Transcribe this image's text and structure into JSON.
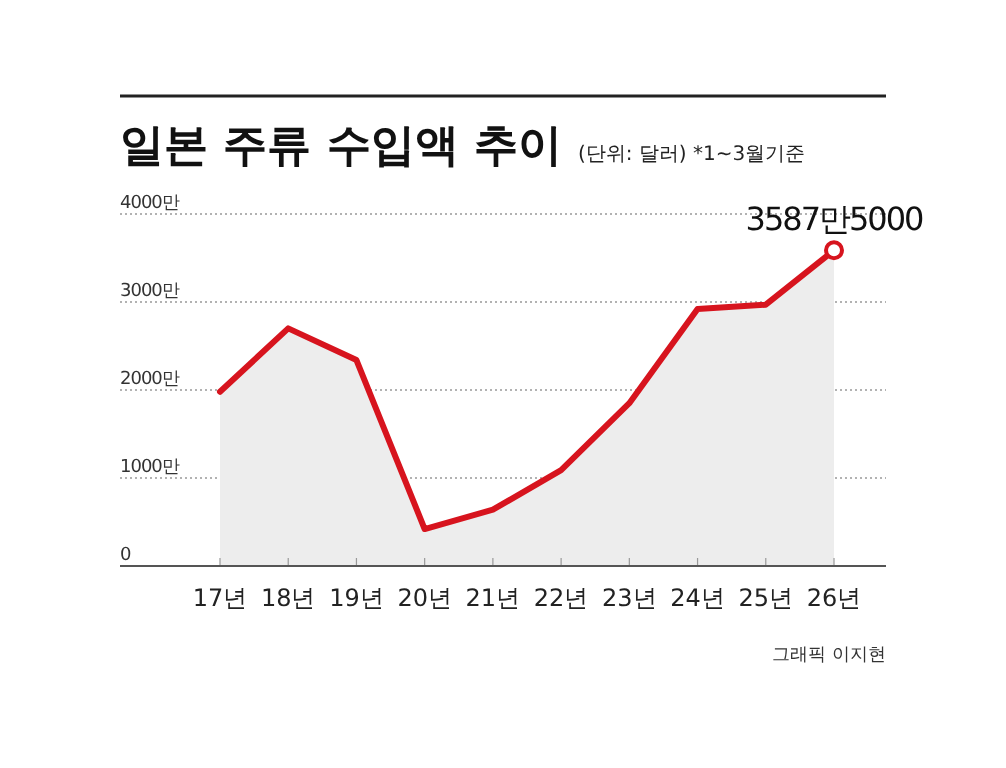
{
  "chart_data": {
    "type": "area",
    "title": "일본 주류 수입액 추이",
    "subtitle": "(단위: 달러)  *1~3월기준",
    "categories": [
      "17년",
      "18년",
      "19년",
      "20년",
      "21년",
      "22년",
      "23년",
      "24년",
      "25년",
      "26년"
    ],
    "values": [
      1980,
      2700,
      2340,
      420,
      640,
      1090,
      1850,
      2920,
      2970,
      3587.5
    ],
    "value_labels": [
      null,
      null,
      null,
      null,
      null,
      null,
      null,
      null,
      null,
      "3587만5000"
    ],
    "color": "#d7141e",
    "ylim": [
      0,
      4000
    ],
    "yticks": [
      {
        "value": 0,
        "label": "0"
      },
      {
        "value": 1000,
        "label": "1000만"
      },
      {
        "value": 2000,
        "label": "2000만"
      },
      {
        "value": 3000,
        "label": "3000만"
      },
      {
        "value": 4000,
        "label": "4000만"
      }
    ],
    "grid": "y",
    "marker": "none",
    "line_style": "solid",
    "annotations": [
      "그래픽 이지현"
    ]
  }
}
